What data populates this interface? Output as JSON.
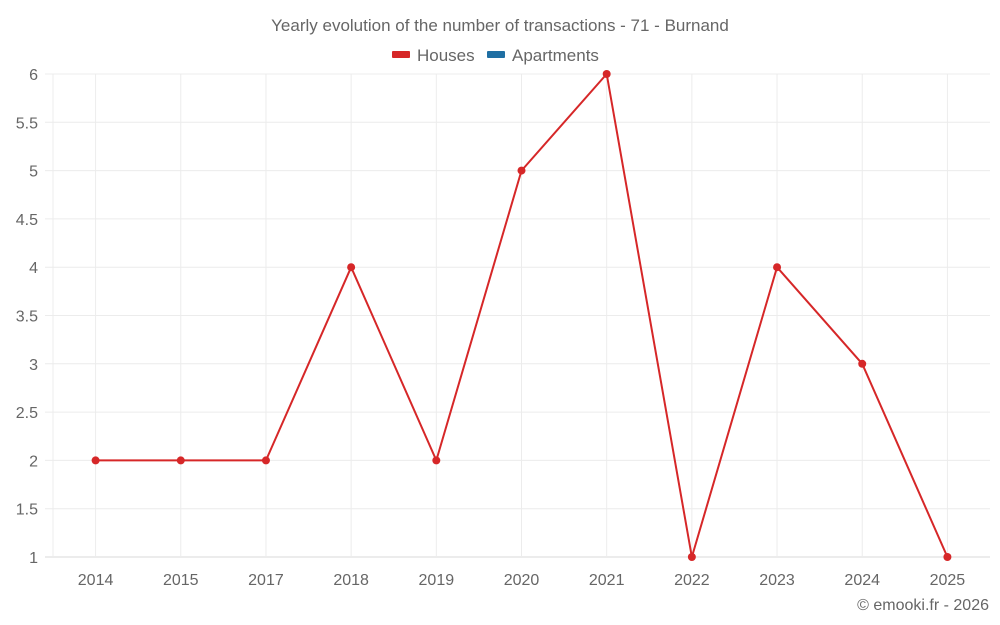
{
  "chart_data": {
    "type": "line",
    "title": "Yearly evolution of the number of transactions - 71 - Burnand",
    "xlabel": "",
    "ylabel": "",
    "categories": [
      "2014",
      "2015",
      "2017",
      "2018",
      "2019",
      "2020",
      "2021",
      "2022",
      "2023",
      "2024",
      "2025"
    ],
    "series": [
      {
        "name": "Houses",
        "color": "#d62728",
        "values": [
          2,
          2,
          2,
          4,
          2,
          5,
          6,
          1,
          4,
          3,
          1
        ]
      },
      {
        "name": "Apartments",
        "color": "#1f6fa3",
        "values": []
      }
    ],
    "ylim": [
      1,
      6
    ],
    "yticks": [
      "1",
      "1.5",
      "2",
      "2.5",
      "3",
      "3.5",
      "4",
      "4.5",
      "5",
      "5.5",
      "6"
    ],
    "grid": true,
    "legend_position": "top-center"
  },
  "legend": [
    {
      "label": "Houses",
      "color": "#d62728"
    },
    {
      "label": "Apartments",
      "color": "#1f6fa3"
    }
  ],
  "credit": "© emooki.fr - 2026"
}
